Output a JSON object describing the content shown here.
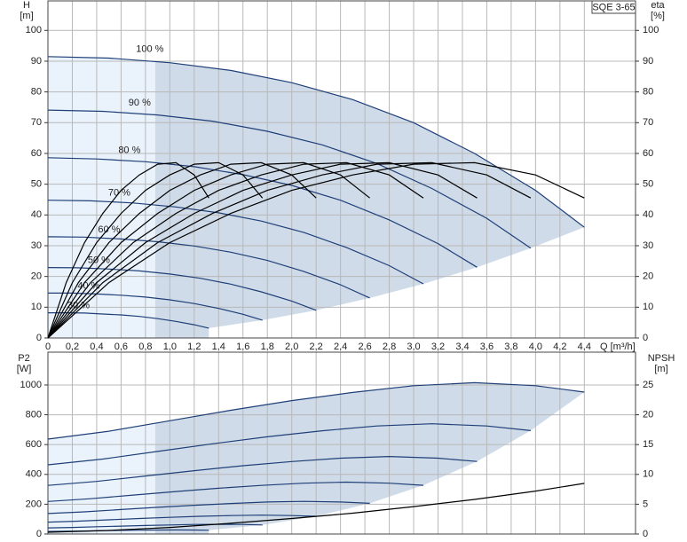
{
  "chart_data": [
    {
      "type": "line",
      "title": "SQE 3-65",
      "x_label": "Q [m³/h]",
      "y_label": "H",
      "y_unit": "[m]",
      "y2_label": "eta",
      "y2_unit": "[%]",
      "xlim": [
        0,
        4.82
      ],
      "ylim": [
        0,
        109.6
      ],
      "y2lim": [
        0,
        109.6
      ],
      "grid": true,
      "min_flow": 0.88,
      "xticks": [
        0,
        {
          "value": 0.2,
          "label": "0,2"
        },
        {
          "value": 0.4,
          "label": "0,4"
        },
        {
          "value": 0.6,
          "label": "0,6"
        },
        {
          "value": 0.8,
          "label": "0,8"
        },
        {
          "value": 1.0,
          "label": "1,0"
        },
        {
          "value": 1.2,
          "label": "1,2"
        },
        {
          "value": 1.4,
          "label": "1,4"
        },
        {
          "value": 1.6,
          "label": "1,6"
        },
        {
          "value": 1.8,
          "label": "1,8"
        },
        {
          "value": 2.0,
          "label": "2,0"
        },
        {
          "value": 2.2,
          "label": "2,2"
        },
        {
          "value": 2.4,
          "label": "2,4"
        },
        {
          "value": 2.6,
          "label": "2,6"
        },
        {
          "value": 2.8,
          "label": "2,8"
        },
        {
          "value": 3.0,
          "label": "3,0"
        },
        {
          "value": 3.2,
          "label": "3,2"
        },
        {
          "value": 3.4,
          "label": "3,4"
        },
        {
          "value": 3.6,
          "label": "3,6"
        },
        {
          "value": 3.8,
          "label": "3,8"
        },
        {
          "value": 4.0,
          "label": "4,0"
        },
        {
          "value": 4.2,
          "label": "4,2"
        },
        {
          "value": 4.4,
          "label": "4,4"
        }
      ],
      "yticks": [
        0,
        10,
        20,
        30,
        40,
        50,
        60,
        70,
        80,
        90,
        100
      ],
      "y2ticks": [
        0,
        10,
        20,
        30,
        40,
        50,
        60,
        70,
        80,
        90,
        100
      ],
      "series": [
        {
          "name": "100 %",
          "color": "#1f3f78",
          "x": [
            0,
            0.5,
            1,
            1.5,
            2,
            2.5,
            3,
            3.5,
            4,
            4.4
          ],
          "values": [
            91.5,
            91,
            89.5,
            87,
            83,
            77.5,
            70,
            60,
            48,
            36
          ]
        },
        {
          "name": "90 %",
          "color": "#1f3f78",
          "x": [
            0,
            0.45,
            0.9,
            1.35,
            1.8,
            2.25,
            2.7,
            3.15,
            3.6,
            3.96
          ],
          "values": [
            74.1,
            73.7,
            72.5,
            70.5,
            67.2,
            62.8,
            56.7,
            48.6,
            38.9,
            29.2
          ]
        },
        {
          "name": "80 %",
          "color": "#1f3f78",
          "x": [
            0,
            0.4,
            0.8,
            1.2,
            1.6,
            2,
            2.4,
            2.8,
            3.2,
            3.52
          ],
          "values": [
            58.6,
            58.2,
            57.3,
            55.7,
            53.1,
            49.6,
            44.8,
            38.4,
            30.7,
            23.0
          ]
        },
        {
          "name": "70 %",
          "color": "#1f3f78",
          "x": [
            0,
            0.35,
            0.7,
            1.05,
            1.4,
            1.75,
            2.1,
            2.45,
            2.8,
            3.08
          ],
          "values": [
            44.8,
            44.6,
            43.9,
            42.6,
            40.7,
            38.0,
            34.3,
            29.4,
            23.5,
            17.6
          ]
        },
        {
          "name": "60 %",
          "color": "#1f3f78",
          "x": [
            0,
            0.3,
            0.6,
            0.9,
            1.2,
            1.5,
            1.8,
            2.1,
            2.4,
            2.64
          ],
          "values": [
            32.9,
            32.8,
            32.2,
            31.3,
            29.9,
            27.9,
            25.2,
            21.6,
            17.3,
            13.0
          ]
        },
        {
          "name": "50 %",
          "color": "#1f3f78",
          "x": [
            0,
            0.25,
            0.5,
            0.75,
            1,
            1.25,
            1.5,
            1.75,
            2,
            2.2
          ],
          "values": [
            22.9,
            22.8,
            22.4,
            21.8,
            20.8,
            19.4,
            17.5,
            15,
            12,
            9
          ]
        },
        {
          "name": "40 %",
          "color": "#1f3f78",
          "x": [
            0,
            0.2,
            0.4,
            0.6,
            0.8,
            1,
            1.2,
            1.4,
            1.6,
            1.76
          ],
          "values": [
            14.6,
            14.6,
            14.3,
            13.9,
            13.3,
            12.4,
            11.2,
            9.6,
            7.7,
            5.8
          ]
        },
        {
          "name": "30 %",
          "color": "#1f3f78",
          "x": [
            0,
            0.15,
            0.3,
            0.45,
            0.6,
            0.75,
            0.9,
            1.05,
            1.2,
            1.32
          ],
          "values": [
            8.2,
            8.2,
            8.1,
            7.8,
            7.5,
            7.0,
            6.3,
            5.4,
            4.3,
            3.2
          ]
        },
        {
          "axis": "y2",
          "color": "#000000",
          "x": [
            0,
            0.5,
            1,
            1.5,
            2,
            2.5,
            3,
            3.5,
            4,
            4.4
          ],
          "values": [
            0,
            18,
            31,
            40.5,
            48,
            53,
            56.5,
            57,
            53,
            45.5
          ]
        },
        {
          "axis": "y2",
          "color": "#000000",
          "x": [
            0,
            0.45,
            0.9,
            1.35,
            1.8,
            2.25,
            2.7,
            3.15,
            3.6,
            3.96
          ],
          "values": [
            0,
            18,
            31,
            40.5,
            48,
            53,
            56.5,
            57,
            53,
            45.5
          ]
        },
        {
          "axis": "y2",
          "color": "#000000",
          "x": [
            0,
            0.4,
            0.8,
            1.2,
            1.6,
            2,
            2.4,
            2.8,
            3.2,
            3.52
          ],
          "values": [
            0,
            18,
            31,
            40.5,
            48,
            53,
            56.5,
            57,
            53,
            45.5
          ]
        },
        {
          "axis": "y2",
          "color": "#000000",
          "x": [
            0,
            0.35,
            0.7,
            1.05,
            1.4,
            1.75,
            2.1,
            2.45,
            2.8,
            3.08
          ],
          "values": [
            0,
            18,
            31,
            40.5,
            48,
            53,
            56.5,
            57,
            53,
            45.5
          ]
        },
        {
          "axis": "y2",
          "color": "#000000",
          "x": [
            0,
            0.3,
            0.6,
            0.9,
            1.2,
            1.5,
            1.8,
            2.1,
            2.4,
            2.64
          ],
          "values": [
            0,
            18,
            31,
            40.5,
            48,
            53,
            56.5,
            57,
            53,
            45.5
          ]
        },
        {
          "axis": "y2",
          "color": "#000000",
          "x": [
            0,
            0.25,
            0.5,
            0.75,
            1,
            1.25,
            1.5,
            1.75,
            2,
            2.2
          ],
          "values": [
            0,
            18,
            31,
            40.5,
            48,
            53,
            56.5,
            57,
            53,
            45.5
          ]
        },
        {
          "axis": "y2",
          "color": "#000000",
          "x": [
            0,
            0.2,
            0.4,
            0.6,
            0.8,
            1,
            1.2,
            1.4,
            1.6,
            1.76
          ],
          "values": [
            0,
            18,
            31,
            40.5,
            48,
            53,
            56.5,
            57,
            53,
            45.5
          ]
        },
        {
          "axis": "y2",
          "color": "#000000",
          "x": [
            0,
            0.15,
            0.3,
            0.45,
            0.6,
            0.75,
            0.9,
            1.05,
            1.2,
            1.32
          ],
          "values": [
            0,
            18,
            31,
            40.5,
            48,
            53,
            56.5,
            57,
            53,
            45.5
          ]
        }
      ]
    },
    {
      "type": "line",
      "y_label": "P2",
      "y_unit": "[W]",
      "y2_label": "NPSH",
      "y2_unit": "[m]",
      "xlim": [
        0,
        4.82
      ],
      "ylim": [
        0,
        1220
      ],
      "y2lim": [
        0,
        30.5
      ],
      "grid": true,
      "min_flow": 0.88,
      "xticks": [
        0,
        0.2,
        0.4,
        0.6,
        0.8,
        1.0,
        1.2,
        1.4,
        1.6,
        1.8,
        2.0,
        2.2,
        2.4,
        2.6,
        2.8,
        3.0,
        3.2,
        3.4,
        3.6,
        3.8,
        4.0,
        4.2,
        4.4
      ],
      "yticks": [
        0,
        200,
        400,
        600,
        800,
        1000
      ],
      "y2ticks": [
        0,
        5,
        10,
        15,
        20,
        25
      ],
      "series": [
        {
          "color": "#1f3f78",
          "x": [
            0,
            0.5,
            1,
            1.5,
            2,
            2.5,
            3,
            3.5,
            4,
            4.4
          ],
          "values": [
            637,
            690,
            760,
            830,
            895,
            950,
            995,
            1015,
            995,
            952
          ]
        },
        {
          "color": "#1f3f78",
          "x": [
            0,
            0.45,
            0.9,
            1.35,
            1.8,
            2.25,
            2.7,
            3.15,
            3.6,
            3.96
          ],
          "values": [
            464,
            503,
            554,
            605,
            652,
            693,
            725,
            740,
            725,
            694
          ]
        },
        {
          "color": "#1f3f78",
          "x": [
            0,
            0.4,
            0.8,
            1.2,
            1.6,
            2,
            2.4,
            2.8,
            3.2,
            3.52
          ],
          "values": [
            326,
            353,
            389,
            425,
            458,
            486,
            509,
            520,
            509,
            487
          ]
        },
        {
          "color": "#1f3f78",
          "x": [
            0,
            0.35,
            0.7,
            1.05,
            1.4,
            1.75,
            2.1,
            2.45,
            2.8,
            3.08
          ],
          "values": [
            218.5,
            237,
            261,
            285,
            307,
            326,
            341,
            348,
            341,
            327
          ]
        },
        {
          "color": "#1f3f78",
          "x": [
            0,
            0.3,
            0.6,
            0.9,
            1.2,
            1.5,
            1.8,
            2.1,
            2.4,
            2.64
          ],
          "values": [
            137.6,
            149,
            164,
            179,
            193,
            205,
            215,
            219,
            215,
            206
          ]
        },
        {
          "color": "#1f3f78",
          "x": [
            0,
            0.25,
            0.5,
            0.75,
            1,
            1.25,
            1.5,
            1.75,
            2,
            2.2
          ],
          "values": [
            79.6,
            86,
            95,
            104,
            112,
            119,
            124,
            127,
            124,
            119
          ]
        },
        {
          "color": "#1f3f78",
          "x": [
            0,
            0.2,
            0.4,
            0.6,
            0.8,
            1,
            1.2,
            1.4,
            1.6,
            1.76
          ],
          "values": [
            40.8,
            44,
            48.6,
            53,
            57,
            61,
            64,
            65,
            64,
            61
          ]
        },
        {
          "color": "#1f3f78",
          "x": [
            0,
            0.15,
            0.3,
            0.45,
            0.6,
            0.75,
            0.9,
            1.05,
            1.2,
            1.32
          ],
          "values": [
            17.2,
            18.6,
            20.5,
            22.4,
            24.2,
            25.7,
            26.9,
            27.4,
            26.9,
            25.7
          ]
        },
        {
          "axis": "y2",
          "color": "#000000",
          "x": [
            0,
            0.5,
            1,
            1.5,
            2,
            2.5,
            3,
            3.5,
            4,
            4.4
          ],
          "values": [
            0.3,
            0.6,
            1.1,
            1.8,
            2.6,
            3.5,
            4.6,
            5.8,
            7.2,
            8.5
          ]
        }
      ]
    }
  ]
}
